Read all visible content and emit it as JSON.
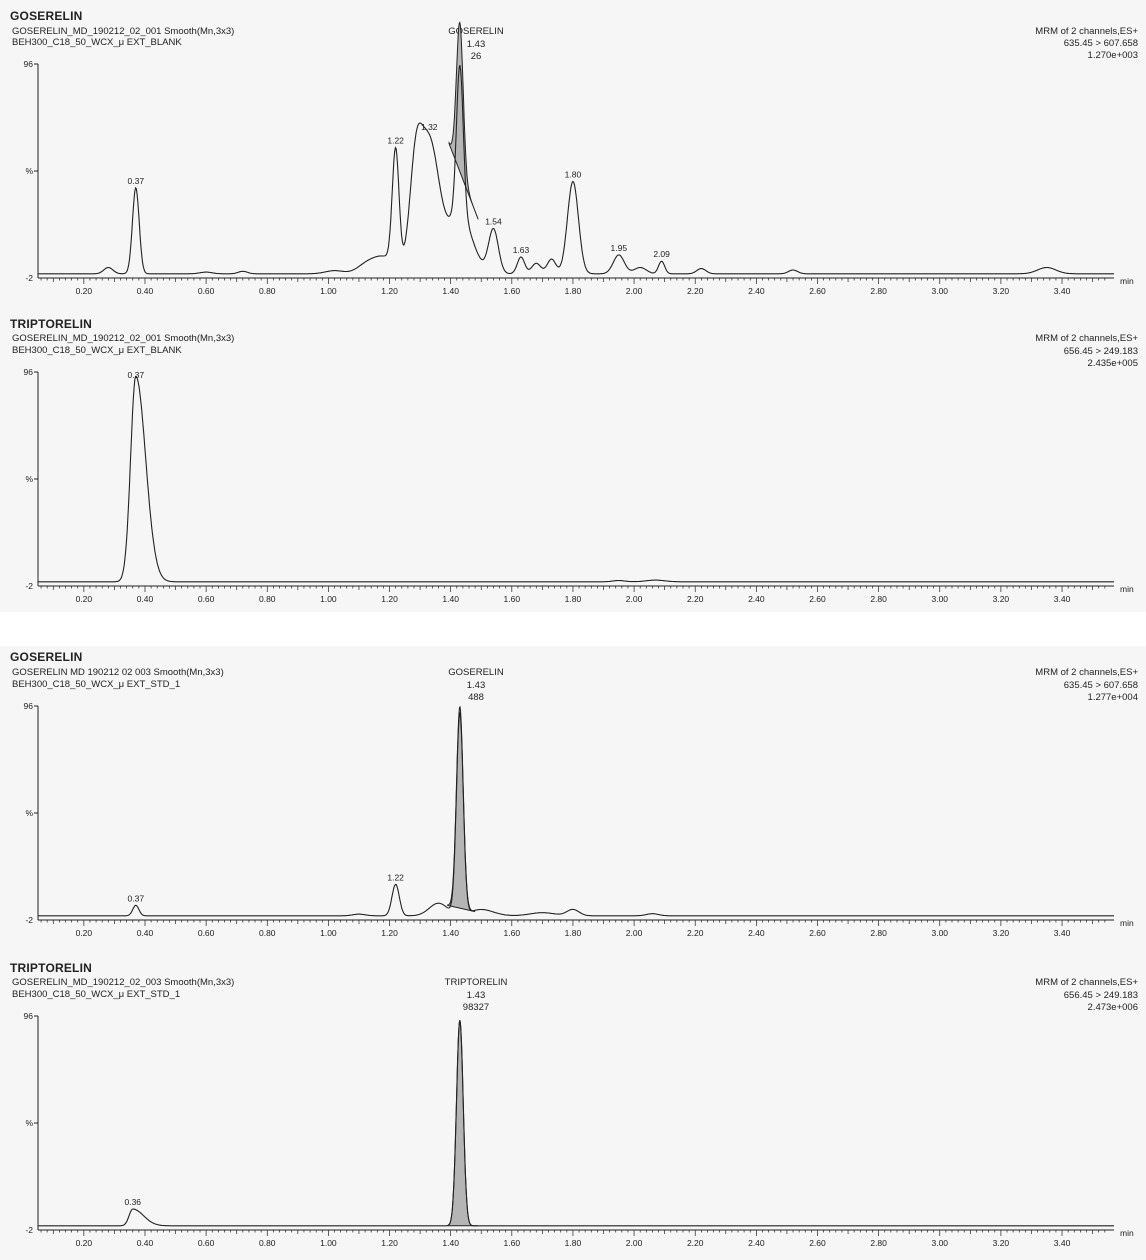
{
  "colors": {
    "trace": "#222222",
    "fill": "#b5b5b5",
    "band": "#f6f6f6"
  },
  "chart_data": [
    {
      "type": "line",
      "title": "GOSERELIN",
      "meta_lines": [
        "GOSERELIN_MD_190212_02_001 Smooth(Mn,3x3)",
        "BEH300_C18_50_WCX_μ EXT_BLANK"
      ],
      "right_lines": [
        "MRM of 2 channels,ES+",
        "635.45 > 607.658",
        "1.270e+003"
      ],
      "peak_label_lines": [
        "GOSERELIN",
        "1.43",
        "26"
      ],
      "xlabel": "min",
      "ylabel": "%",
      "ytop_label": "96",
      "ybottom_label": "-2",
      "xlim": [
        0.05,
        3.57
      ],
      "ylim": [
        -2,
        100
      ],
      "xticks": [
        "0.20",
        "0.40",
        "0.60",
        "0.80",
        "1.00",
        "1.20",
        "1.40",
        "1.60",
        "1.80",
        "2.00",
        "2.20",
        "2.40",
        "2.60",
        "2.80",
        "3.00",
        "3.20",
        "3.40"
      ],
      "peaks": [
        {
          "rt": 0.28,
          "h": 3,
          "w": 0.015
        },
        {
          "rt": 0.37,
          "h": 41,
          "w": 0.011,
          "label": "0.37"
        },
        {
          "rt": 0.6,
          "h": 0.8,
          "w": 0.02
        },
        {
          "rt": 0.72,
          "h": 1.2,
          "w": 0.015
        },
        {
          "rt": 1.02,
          "h": 1.5,
          "w": 0.03
        },
        {
          "rt": 1.12,
          "h": 3,
          "w": 0.03
        },
        {
          "rt": 1.18,
          "h": 8,
          "w": 0.04
        },
        {
          "rt": 1.22,
          "h": 55,
          "w": 0.011,
          "label": "1.22"
        },
        {
          "rt": 1.285,
          "h": 42,
          "w": 0.02
        },
        {
          "rt": 1.33,
          "h": 62,
          "w": 0.032,
          "label": "1.32"
        },
        {
          "rt": 1.43,
          "h": 28,
          "w": 0.04
        },
        {
          "rt": 1.54,
          "h": 21,
          "w": 0.016,
          "label": "1.54"
        },
        {
          "rt": 1.63,
          "h": 8,
          "w": 0.012,
          "label": "1.63"
        },
        {
          "rt": 1.68,
          "h": 5,
          "w": 0.015
        },
        {
          "rt": 1.73,
          "h": 7,
          "w": 0.014
        },
        {
          "rt": 1.8,
          "h": 44,
          "w": 0.018,
          "label": "1.80"
        },
        {
          "rt": 1.95,
          "h": 9,
          "w": 0.018,
          "label": "1.95"
        },
        {
          "rt": 2.02,
          "h": 3,
          "w": 0.02
        },
        {
          "rt": 2.09,
          "h": 6,
          "w": 0.01,
          "label": "2.09"
        },
        {
          "rt": 2.22,
          "h": 2.5,
          "w": 0.015
        },
        {
          "rt": 2.52,
          "h": 1.8,
          "w": 0.015
        },
        {
          "rt": 3.35,
          "h": 3,
          "w": 0.03
        }
      ],
      "shaded": {
        "rt": 1.43,
        "h": 71,
        "w": 0.011,
        "start": 1.395,
        "end": 1.49,
        "base_start": 62,
        "base_end": 26
      }
    },
    {
      "type": "line",
      "title": "TRIPTORELIN",
      "meta_lines": [
        "GOSERELIN_MD_190212_02_001 Smooth(Mn,3x3)",
        "BEH300_C18_50_WCX_μ EXT_BLANK"
      ],
      "right_lines": [
        "MRM of 2 channels,ES+",
        "656.45 > 249.183",
        "2.435e+005"
      ],
      "peak_label_lines": [],
      "xlabel": "min",
      "ylabel": "%",
      "ytop_label": "96",
      "ybottom_label": "-2",
      "xlim": [
        0.05,
        3.57
      ],
      "ylim": [
        -2,
        100
      ],
      "xticks": [
        "0.20",
        "0.40",
        "0.60",
        "0.80",
        "1.00",
        "1.20",
        "1.40",
        "1.60",
        "1.80",
        "2.00",
        "2.20",
        "2.40",
        "2.60",
        "2.80",
        "3.00",
        "3.20",
        "3.40"
      ],
      "peaks": [
        {
          "rt": 0.37,
          "h": 98,
          "w": 0.018,
          "w_left": 0.017,
          "w_right": 0.032,
          "label": "0.37"
        },
        {
          "rt": 1.95,
          "h": 0.6,
          "w": 0.02
        },
        {
          "rt": 2.07,
          "h": 0.8,
          "w": 0.03
        }
      ],
      "shaded": null
    },
    {
      "type": "line",
      "title": "GOSERELIN",
      "meta_lines": [
        "GOSERELIN MD 190212 02 003 Smooth(Mn,3x3)",
        "BEH300_C18_50_WCX_μ EXT_STD_1"
      ],
      "right_lines": [
        "MRM of 2 channels,ES+",
        "635.45 > 607.658",
        "1.277e+004"
      ],
      "peak_label_lines": [
        "GOSERELIN",
        "1.43",
        "488"
      ],
      "xlabel": "min",
      "ylabel": "%",
      "ytop_label": "96",
      "ybottom_label": "-2",
      "xlim": [
        0.05,
        3.57
      ],
      "ylim": [
        -2,
        100
      ],
      "xticks": [
        "0.20",
        "0.40",
        "0.60",
        "0.80",
        "1.00",
        "1.20",
        "1.40",
        "1.60",
        "1.80",
        "2.00",
        "2.20",
        "2.40",
        "2.60",
        "2.80",
        "3.00",
        "3.20",
        "3.40"
      ],
      "peaks": [
        {
          "rt": 0.37,
          "h": 5,
          "w": 0.01,
          "label": "0.37"
        },
        {
          "rt": 1.1,
          "h": 0.8,
          "w": 0.02
        },
        {
          "rt": 1.22,
          "h": 15,
          "w": 0.012,
          "label": "1.22"
        },
        {
          "rt": 1.36,
          "h": 6,
          "w": 0.03
        },
        {
          "rt": 1.5,
          "h": 3,
          "w": 0.04
        },
        {
          "rt": 1.7,
          "h": 1.5,
          "w": 0.04
        },
        {
          "rt": 1.8,
          "h": 3,
          "w": 0.02
        },
        {
          "rt": 2.06,
          "h": 1,
          "w": 0.02
        }
      ],
      "shaded": {
        "rt": 1.43,
        "h": 96,
        "w": 0.011,
        "start": 1.39,
        "end": 1.48,
        "base_start": 5,
        "base_end": 2
      }
    },
    {
      "type": "line",
      "title": "TRIPTORELIN",
      "meta_lines": [
        "GOSERELIN_MD_190212_02_003 Smooth(Mn,3x3)",
        "BEH300_C18_50_WCX_μ EXT_STD_1"
      ],
      "right_lines": [
        "MRM of 2 channels,ES+",
        "656.45 > 249.183",
        "2.473e+006"
      ],
      "peak_label_lines": [
        "TRIPTORELIN",
        "1.43",
        "98327"
      ],
      "xlabel": "min",
      "ylabel": "%",
      "ytop_label": "96",
      "ybottom_label": "-2",
      "xlim": [
        0.05,
        3.57
      ],
      "ylim": [
        -2,
        100
      ],
      "xticks": [
        "0.20",
        "0.40",
        "0.60",
        "0.80",
        "1.00",
        "1.20",
        "1.40",
        "1.60",
        "1.80",
        "2.00",
        "2.20",
        "2.40",
        "2.60",
        "2.80",
        "3.00",
        "3.20",
        "3.40"
      ],
      "peaks": [
        {
          "rt": 0.36,
          "h": 8,
          "w": 0.012,
          "w_left": 0.012,
          "w_right": 0.035,
          "label": "0.36"
        }
      ],
      "shaded": {
        "rt": 1.43,
        "h": 98,
        "w": 0.011,
        "start": 1.39,
        "end": 1.49,
        "base_start": 0,
        "base_end": 0
      }
    }
  ]
}
